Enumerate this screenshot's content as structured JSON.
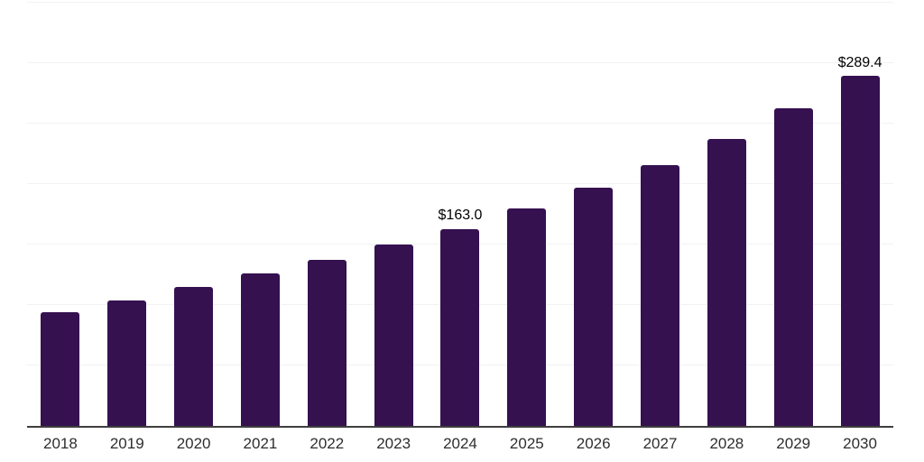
{
  "chart_data": {
    "type": "bar",
    "title": "",
    "xlabel": "",
    "ylabel": "",
    "categories": [
      "2018",
      "2019",
      "2020",
      "2021",
      "2022",
      "2023",
      "2024",
      "2025",
      "2026",
      "2027",
      "2028",
      "2029",
      "2030"
    ],
    "values": [
      94,
      104,
      115,
      126,
      137,
      150,
      163.0,
      180,
      197,
      216,
      237,
      263,
      289.4
    ],
    "data_labels": [
      null,
      null,
      null,
      null,
      null,
      null,
      "$163.0",
      null,
      null,
      null,
      null,
      null,
      "$289.4"
    ],
    "ylim": [
      0,
      350
    ],
    "grid_interval": 50,
    "grid": "horizontal",
    "legend": "none",
    "colors": {
      "bar": "#351150",
      "gridline": "#f2f2f2",
      "axis": "#3f3f3f",
      "tick_label": "#2e2e2e",
      "value_label": "#000000",
      "background": "#ffffff"
    }
  }
}
